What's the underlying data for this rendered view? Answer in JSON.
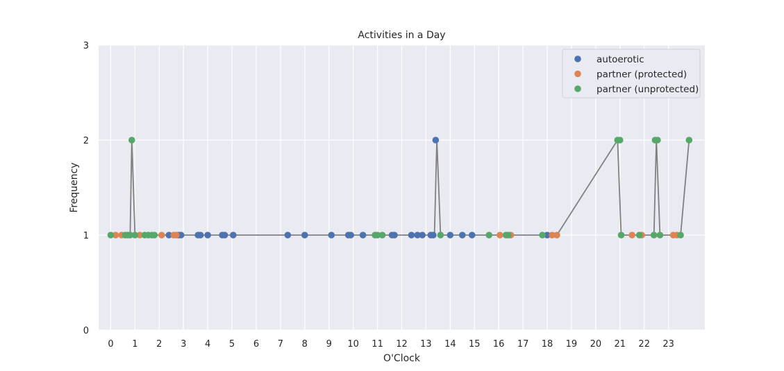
{
  "chart_data": {
    "type": "scatter",
    "title": "Activities in a Day",
    "xlabel": "O'Clock",
    "ylabel": "Frequency",
    "xlim": [
      -0.5,
      24.5
    ],
    "ylim": [
      0,
      3
    ],
    "xticks": [
      "0",
      "1",
      "2",
      "3",
      "4",
      "5",
      "6",
      "7",
      "8",
      "9",
      "10",
      "11",
      "12",
      "13",
      "14",
      "15",
      "16",
      "17",
      "18",
      "19",
      "20",
      "21",
      "22",
      "23"
    ],
    "yticks": [
      "0",
      "1",
      "2",
      "3"
    ],
    "grid": true,
    "legend_position": "top-right",
    "colors": {
      "autoerotic": "#4c72b0",
      "partner (protected)": "#dd8452",
      "partner (unprotected)": "#55a868",
      "line": "#808080",
      "background": "#eaeaf2",
      "grid": "#ffffff"
    },
    "line": {
      "x": [
        0.0,
        0.8,
        0.87,
        1.0,
        13.35,
        13.45,
        13.6,
        18.4,
        20.9,
        21.05,
        22.4,
        22.5,
        22.65,
        23.5,
        23.85
      ],
      "y": [
        1,
        1,
        2,
        1,
        1,
        2,
        1,
        1,
        2,
        1,
        1,
        2,
        1,
        1,
        2
      ]
    },
    "series": [
      {
        "name": "autoerotic",
        "x": [
          2.4,
          2.8,
          2.9,
          3.6,
          3.7,
          4.0,
          4.6,
          4.7,
          5.05,
          7.3,
          8.0,
          9.1,
          9.8,
          9.9,
          10.4,
          11.6,
          11.7,
          12.4,
          12.65,
          12.85,
          13.2,
          13.3,
          13.4,
          14.0,
          14.5,
          14.9,
          18.0
        ],
        "y": [
          1,
          1,
          1,
          1,
          1,
          1,
          1,
          1,
          1,
          1,
          1,
          1,
          1,
          1,
          1,
          1,
          1,
          1,
          1,
          1,
          1,
          1,
          2,
          1,
          1,
          1,
          1
        ]
      },
      {
        "name": "partner (protected)",
        "x": [
          0.2,
          0.45,
          1.2,
          2.1,
          2.6,
          2.7,
          16.05,
          16.5,
          18.2,
          18.4,
          21.5,
          21.9,
          23.2,
          23.35
        ],
        "y": [
          1,
          1,
          1,
          1,
          1,
          1,
          1,
          1,
          1,
          1,
          1,
          1,
          1,
          1
        ]
      },
      {
        "name": "partner (unprotected)",
        "x": [
          0.0,
          0.6,
          0.7,
          0.8,
          0.87,
          1.0,
          1.4,
          1.55,
          1.7,
          1.8,
          10.9,
          11.0,
          11.2,
          13.6,
          15.6,
          16.3,
          16.4,
          17.8,
          20.9,
          21.0,
          21.05,
          21.8,
          22.4,
          22.45,
          22.55,
          22.65,
          23.5,
          23.85
        ],
        "y": [
          1,
          1,
          1,
          1,
          2,
          1,
          1,
          1,
          1,
          1,
          1,
          1,
          1,
          1,
          1,
          1,
          1,
          1,
          2,
          2,
          1,
          1,
          1,
          2,
          2,
          1,
          1,
          2
        ]
      }
    ]
  }
}
